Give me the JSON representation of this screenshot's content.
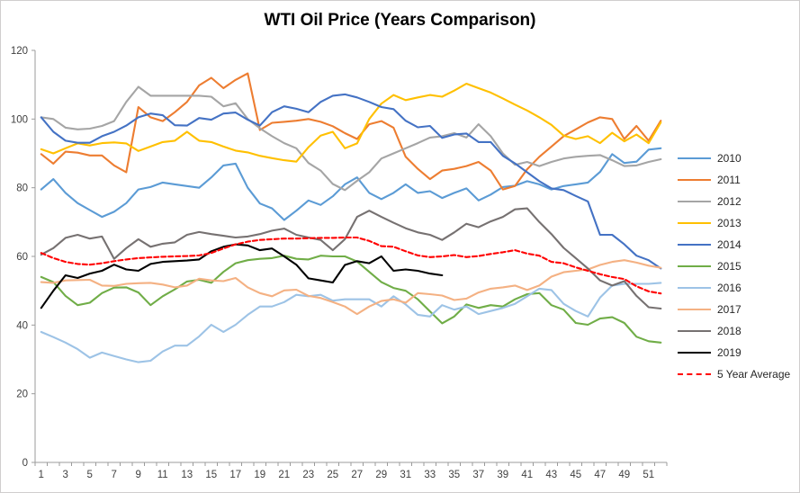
{
  "title": "WTI Oil Price (Years Comparison)",
  "chart_data": {
    "type": "line",
    "title": "WTI Oil Price (Years Comparison)",
    "xlabel": "",
    "ylabel": "",
    "x_range": [
      1,
      52
    ],
    "x_tick_labels": [
      "1",
      "3",
      "5",
      "7",
      "9",
      "11",
      "13",
      "15",
      "17",
      "19",
      "21",
      "23",
      "25",
      "27",
      "29",
      "31",
      "33",
      "35",
      "37",
      "39",
      "41",
      "43",
      "45",
      "47",
      "49",
      "51"
    ],
    "y_tick_labels": [
      "0",
      "20",
      "40",
      "60",
      "80",
      "100",
      "120"
    ],
    "ylim": [
      0,
      120
    ],
    "grid": false,
    "legend_position": "right",
    "series": [
      {
        "name": "2010",
        "color": "#5B9BD5",
        "dash": null,
        "values": [
          79.5,
          82.5,
          78.5,
          75.5,
          73.5,
          71.5,
          73,
          75.5,
          79.5,
          80.2,
          81.5,
          81,
          80.5,
          80,
          83,
          86.5,
          87,
          80,
          75.4,
          74,
          70.6,
          73.3,
          76.3,
          75,
          77.5,
          81,
          83,
          78.5,
          76.7,
          78.5,
          81,
          78.5,
          79,
          77,
          78.5,
          79.8,
          76.3,
          78,
          80.2,
          80.6,
          81.9,
          81,
          79.5,
          80.5,
          81,
          81.5,
          84.6,
          89.8,
          87.2,
          87.6,
          91.1,
          91.5
        ]
      },
      {
        "name": "2011",
        "color": "#ED7D31",
        "dash": null,
        "values": [
          89.8,
          87,
          90.5,
          90.2,
          89.4,
          89.4,
          86.5,
          84.5,
          103.5,
          100.5,
          99.4,
          102,
          105,
          109.8,
          112,
          109,
          111.4,
          113.3,
          96.8,
          98.9,
          99.2,
          99.5,
          100,
          99.2,
          97.9,
          95.9,
          94.2,
          98.5,
          99.4,
          97.5,
          89,
          85.5,
          82.5,
          85,
          85.5,
          86.3,
          87.5,
          85,
          79.5,
          80.5,
          85.4,
          89,
          92,
          95,
          97,
          99,
          100.5,
          100,
          94.2,
          98,
          93.7,
          99.5
        ]
      },
      {
        "name": "2012",
        "color": "#A5A5A5",
        "dash": null,
        "values": [
          100.5,
          100,
          97.5,
          97,
          97.2,
          98,
          99.4,
          105,
          109.4,
          106.8,
          106.8,
          106.8,
          106.8,
          106.8,
          106.5,
          103.7,
          104.6,
          100,
          97.3,
          95,
          93,
          91.5,
          87.2,
          85,
          81.1,
          79.3,
          82,
          84.5,
          88.5,
          90,
          91.5,
          93,
          94.6,
          95,
          95.9,
          94.6,
          98.5,
          95,
          90,
          86.7,
          87.5,
          86.3,
          87.5,
          88.5,
          89,
          89.3,
          89.5,
          88,
          86.3,
          86.5,
          87.5,
          88.3
        ]
      },
      {
        "name": "2013",
        "color": "#FFC000",
        "dash": null,
        "values": [
          91.2,
          90,
          91.5,
          92.9,
          92.3,
          93,
          93.2,
          92.9,
          90.7,
          92,
          93.3,
          93.7,
          96.3,
          93.7,
          93.3,
          92,
          90.8,
          90.3,
          89.3,
          88.6,
          88,
          87.6,
          91.8,
          95.2,
          96.3,
          91.5,
          92.9,
          100,
          104.5,
          107,
          105.5,
          106.3,
          107,
          106.5,
          108.3,
          110.3,
          109,
          107.7,
          106,
          104.2,
          102.5,
          100.5,
          98.3,
          95.2,
          94.2,
          95,
          93,
          96,
          93.5,
          95.5,
          93,
          99
        ]
      },
      {
        "name": "2014",
        "color": "#4472C4",
        "dash": null,
        "values": [
          100.5,
          96.3,
          93.7,
          93.1,
          93.1,
          95,
          96.3,
          98.1,
          100.5,
          101.6,
          101.1,
          98.2,
          98.1,
          100.3,
          99.8,
          101.6,
          101.9,
          99.8,
          98.1,
          102,
          103.7,
          103,
          102,
          105,
          106.8,
          107.2,
          106.3,
          105,
          103.5,
          102.9,
          99.5,
          97.6,
          98,
          94.5,
          95.5,
          95.8,
          93.3,
          93.3,
          89.3,
          87.1,
          84.5,
          81.9,
          79.8,
          79.3,
          77.6,
          76,
          66.3,
          66.3,
          63.5,
          60.2,
          58.9,
          56.5
        ]
      },
      {
        "name": "2015",
        "color": "#70AD47",
        "dash": null,
        "values": [
          54,
          52.5,
          48.5,
          45.8,
          46.5,
          49.3,
          50.9,
          51,
          49.5,
          45.8,
          48.4,
          50.4,
          52.7,
          53.2,
          52.3,
          55.5,
          58,
          58.9,
          59.3,
          59.5,
          60.2,
          59.3,
          59.1,
          60.2,
          60,
          60,
          58.5,
          55.5,
          52.5,
          50.8,
          50,
          47.5,
          44,
          40.5,
          42.5,
          46,
          45,
          45.8,
          45.4,
          47.5,
          49,
          49.3,
          45.8,
          44.5,
          40.6,
          40.1,
          41.9,
          42.3,
          40.6,
          36.6,
          35.3,
          34.9
        ]
      },
      {
        "name": "2016",
        "color": "#9DC3E6",
        "dash": null,
        "values": [
          38,
          36.5,
          34.9,
          33,
          30.5,
          32,
          31,
          30,
          29.2,
          29.6,
          32.3,
          34,
          34,
          36.7,
          40.1,
          38,
          40.1,
          43,
          45.4,
          45.4,
          46.7,
          48.8,
          48.4,
          48.8,
          47.1,
          47.5,
          47.5,
          47.5,
          45.4,
          48.4,
          46,
          43,
          42.5,
          45.8,
          44.5,
          45.4,
          43.2,
          44.1,
          45,
          46.2,
          48.4,
          50.6,
          50.2,
          46.2,
          44.1,
          42.5,
          48,
          51.5,
          52,
          52,
          52,
          52.3
        ]
      },
      {
        "name": "2017",
        "color": "#F4B183",
        "dash": null,
        "values": [
          52.5,
          52.3,
          53,
          53.1,
          53.2,
          51.5,
          51.4,
          52,
          52.2,
          52.3,
          51.8,
          51,
          51.5,
          53.5,
          53,
          52.8,
          53.7,
          51,
          49.3,
          48.4,
          50.1,
          50.3,
          48.5,
          47.9,
          46.7,
          45.4,
          43.2,
          45.4,
          47,
          47.5,
          46.5,
          49.3,
          49,
          48.6,
          47.3,
          47.7,
          49.5,
          50.6,
          51,
          51.5,
          50.2,
          51.5,
          54.1,
          55.4,
          55.8,
          56.2,
          57.5,
          58.4,
          58.9,
          58.2,
          57.3,
          56.7
        ]
      },
      {
        "name": "2018",
        "color": "#767171",
        "dash": null,
        "values": [
          60.5,
          62.4,
          65.4,
          66.3,
          65.2,
          65.8,
          59.3,
          62.4,
          65,
          62.8,
          63.7,
          64.1,
          66.3,
          67.1,
          66.5,
          66,
          65.5,
          65.8,
          66.5,
          67.5,
          68.1,
          66.3,
          65.5,
          64.8,
          61.8,
          65,
          71.5,
          73.3,
          71.5,
          69.8,
          68.2,
          67,
          66.3,
          64.8,
          67,
          69.5,
          68.5,
          70.2,
          71.5,
          73.7,
          74,
          70,
          66.5,
          62.5,
          59.5,
          56.5,
          53,
          51.5,
          52.8,
          48.5,
          45.2,
          44.8
        ]
      },
      {
        "name": "2019",
        "color": "#000000",
        "dash": null,
        "values": [
          45,
          50,
          54.5,
          53.7,
          55,
          55.8,
          57.6,
          56.2,
          55.8,
          57.8,
          58.4,
          58.6,
          58.8,
          59.1,
          61.5,
          62.8,
          63.5,
          63.2,
          61.8,
          62.3,
          60,
          57.6,
          53.6,
          53,
          52.4,
          57.5,
          58.6,
          58,
          60,
          55.8,
          56.2,
          55.8,
          55,
          54.5
        ]
      },
      {
        "name": "5 Year Average",
        "color": "#FF0000",
        "dash": "5 3",
        "values": [
          61,
          59.5,
          58.4,
          57.8,
          57.6,
          58,
          58.6,
          59.1,
          59.5,
          59.7,
          59.9,
          60,
          60.1,
          60.3,
          61,
          62.3,
          63.5,
          64.3,
          64.8,
          65,
          65.2,
          65.2,
          65.3,
          65.4,
          65.4,
          65.5,
          65.5,
          64.5,
          63,
          62.8,
          61.5,
          60.3,
          59.8,
          60,
          60.4,
          59.8,
          60.1,
          60.7,
          61.2,
          61.8,
          60.8,
          60.2,
          58.4,
          58,
          56.8,
          55.8,
          54.8,
          54,
          53.4,
          51.3,
          49.8,
          49.2
        ]
      }
    ]
  }
}
